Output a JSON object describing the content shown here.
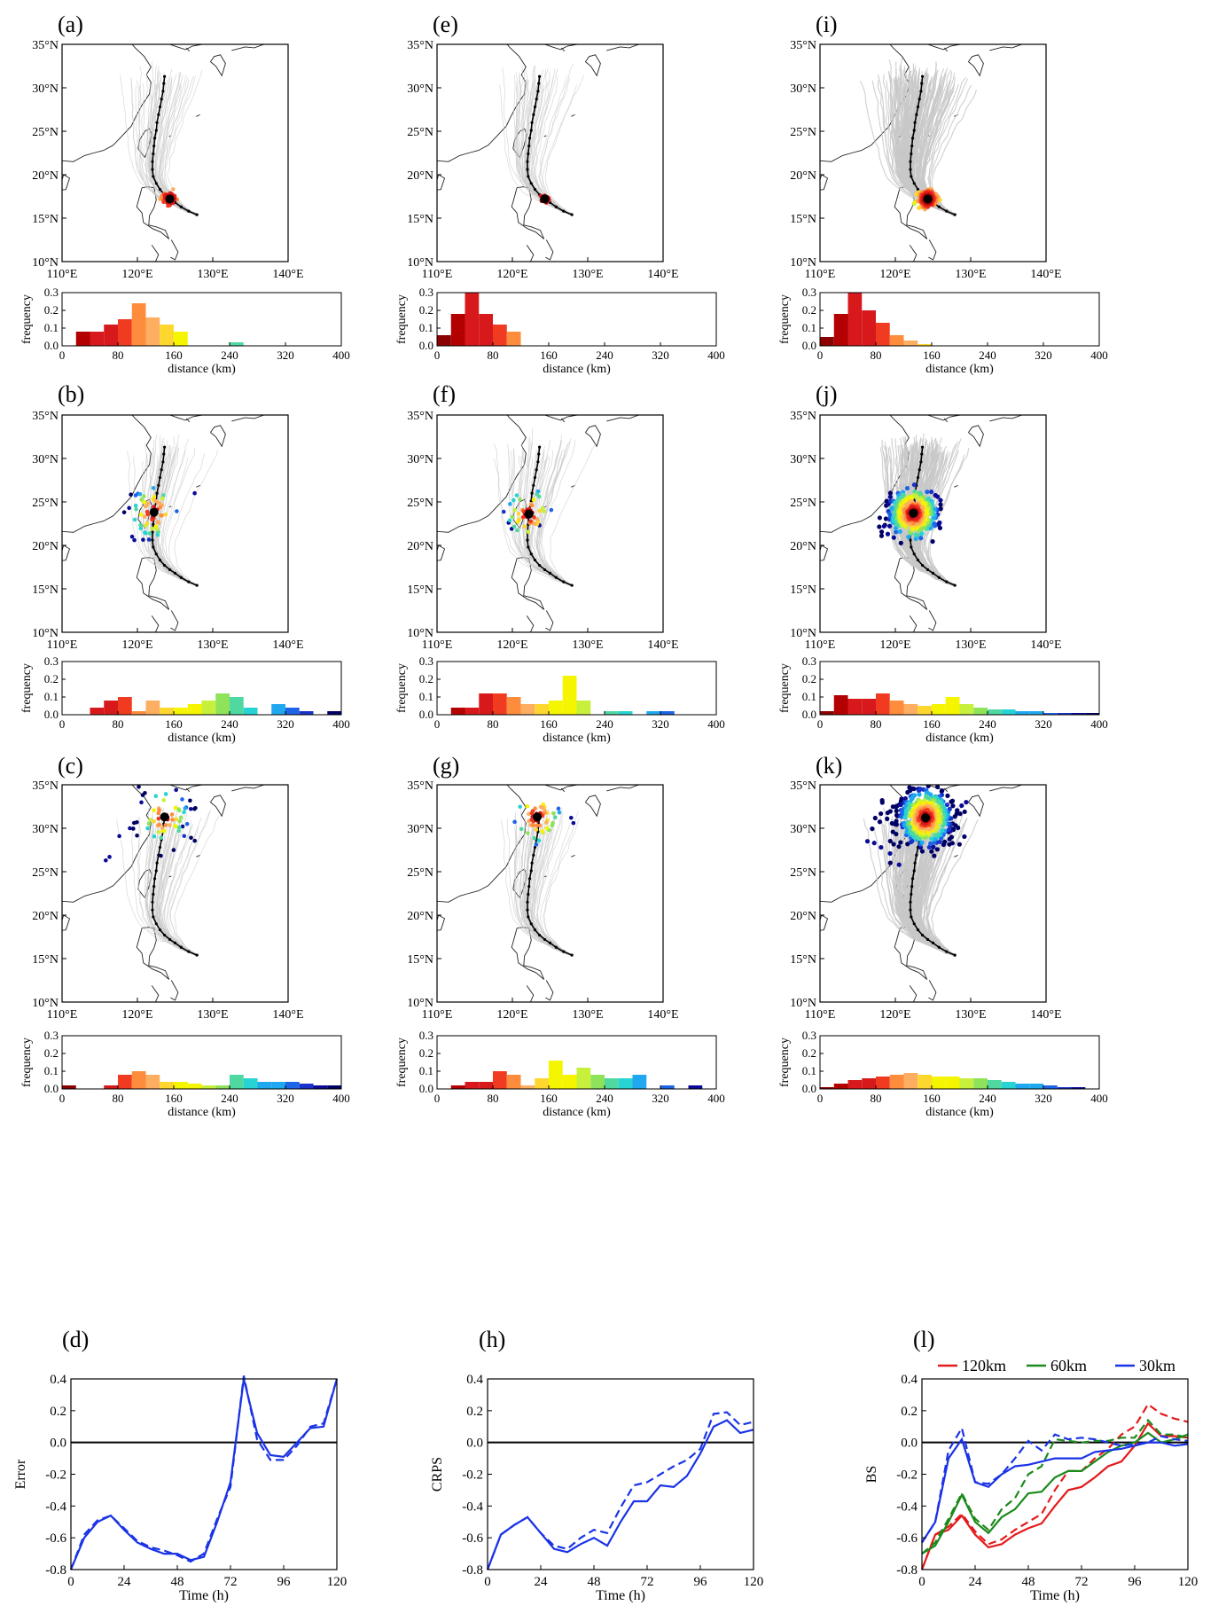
{
  "colors": {
    "distance_scale": [
      "#8b0000",
      "#b30000",
      "#d7191c",
      "#f03b20",
      "#fd8d3c",
      "#fdae61",
      "#fed72e",
      "#f5f500",
      "#c6f03c",
      "#8fe35a",
      "#4fd9a0",
      "#27d3d3",
      "#1fa8f0",
      "#1e64e6",
      "#1932c8",
      "#0a0a96",
      "#000064"
    ],
    "track_gray": "#c8c8c8",
    "best_track": "#000000",
    "line_120km": "#e41a1c",
    "line_60km": "#1b8a1b",
    "line_30km": "#1a33e6"
  },
  "panels": [
    {
      "label": "(a)",
      "col": 0,
      "row": 0,
      "center": [
        124.3,
        17.2
      ],
      "spread": 0.8,
      "npts": 70,
      "nlines": 45,
      "outliers": [],
      "hist": [
        0,
        0.08,
        0.08,
        0.12,
        0.15,
        0.24,
        0.16,
        0.12,
        0.08,
        0,
        0,
        0,
        0.02,
        0,
        0,
        0,
        0,
        0,
        0,
        0
      ]
    },
    {
      "label": "(b)",
      "col": 0,
      "row": 1,
      "center": [
        122.2,
        23.8
      ],
      "spread": 2.8,
      "npts": 60,
      "nlines": 45,
      "outliers": [
        [
          119.3,
          21.0
        ],
        [
          119.6,
          20.6
        ],
        [
          127.6,
          26.0
        ],
        [
          118.9,
          24.3
        ]
      ],
      "hist": [
        0,
        0,
        0.04,
        0.08,
        0.1,
        0.02,
        0.08,
        0.04,
        0.04,
        0.06,
        0.08,
        0.12,
        0.1,
        0.04,
        0,
        0.06,
        0.04,
        0.02,
        0,
        0.02
      ]
    },
    {
      "label": "(c)",
      "col": 0,
      "row": 2,
      "center": [
        123.6,
        31.3
      ],
      "spread": 3.6,
      "npts": 60,
      "nlines": 45,
      "outliers": [
        [
          115.8,
          26.3
        ],
        [
          116.3,
          26.7
        ],
        [
          117.6,
          29.1
        ],
        [
          119.0,
          30.0
        ],
        [
          126.0,
          30.2
        ]
      ],
      "hist": [
        0.02,
        0,
        0,
        0.02,
        0.08,
        0.1,
        0.08,
        0.04,
        0.04,
        0.03,
        0.02,
        0.02,
        0.08,
        0.06,
        0.04,
        0.04,
        0.04,
        0.03,
        0.02,
        0.02
      ]
    },
    {
      "label": "(e)",
      "col": 1,
      "row": 0,
      "center": [
        124.3,
        17.2
      ],
      "spread": 0.5,
      "npts": 40,
      "nlines": 45,
      "outliers": [],
      "hist": [
        0.06,
        0.18,
        0.3,
        0.18,
        0.12,
        0.08,
        0,
        0,
        0,
        0,
        0,
        0,
        0,
        0,
        0,
        0,
        0,
        0,
        0,
        0
      ]
    },
    {
      "label": "(f)",
      "col": 1,
      "row": 1,
      "center": [
        122.2,
        23.6
      ],
      "spread": 2.0,
      "npts": 50,
      "nlines": 45,
      "outliers": [
        [
          119.5,
          22.6
        ],
        [
          119.9,
          21.9
        ],
        [
          123.6,
          22.3
        ]
      ],
      "hist": [
        0,
        0.04,
        0.04,
        0.12,
        0.12,
        0.1,
        0.06,
        0.06,
        0.08,
        0.22,
        0.08,
        0,
        0.02,
        0.02,
        0,
        0.02,
        0.02,
        0,
        0,
        0
      ]
    },
    {
      "label": "(g)",
      "col": 1,
      "row": 2,
      "center": [
        123.3,
        31.3
      ],
      "spread": 2.2,
      "npts": 50,
      "nlines": 45,
      "outliers": [
        [
          127.8,
          31.2
        ],
        [
          128.1,
          30.6
        ]
      ],
      "hist": [
        0,
        0.02,
        0.04,
        0.04,
        0.1,
        0.08,
        0.02,
        0.06,
        0.16,
        0.08,
        0.12,
        0.08,
        0.06,
        0.06,
        0.08,
        0,
        0.02,
        0,
        0.02,
        0
      ]
    },
    {
      "label": "(i)",
      "col": 2,
      "row": 0,
      "center": [
        124.3,
        17.2
      ],
      "spread": 0.9,
      "npts": 300,
      "nlines": 130,
      "outliers": [],
      "hist": [
        0.05,
        0.18,
        0.3,
        0.2,
        0.13,
        0.06,
        0.03,
        0.01,
        0,
        0,
        0,
        0,
        0,
        0,
        0,
        0,
        0,
        0,
        0,
        0
      ]
    },
    {
      "label": "(j)",
      "col": 2,
      "row": 1,
      "center": [
        122.4,
        23.7
      ],
      "spread": 2.7,
      "npts": 420,
      "nlines": 130,
      "outliers": [
        [
          118.5,
          22.2
        ],
        [
          119.0,
          21.3
        ],
        [
          119.8,
          20.9
        ],
        [
          125.6,
          25.6
        ],
        [
          126.0,
          25.2
        ]
      ],
      "hist": [
        0.02,
        0.11,
        0.09,
        0.09,
        0.12,
        0.08,
        0.06,
        0.05,
        0.06,
        0.1,
        0.06,
        0.04,
        0.03,
        0.03,
        0.02,
        0.02,
        0.01,
        0.01,
        0.01,
        0.01
      ]
    },
    {
      "label": "(k)",
      "col": 2,
      "row": 2,
      "center": [
        124.0,
        31.2
      ],
      "spread": 3.4,
      "npts": 500,
      "nlines": 130,
      "outliers": [
        [
          116.3,
          28.5
        ],
        [
          117.2,
          28.3
        ],
        [
          118.1,
          27.8
        ],
        [
          119.3,
          27.1
        ],
        [
          128.8,
          32.6
        ],
        [
          129.4,
          33.0
        ],
        [
          120.5,
          25.8
        ]
      ],
      "hist": [
        0.01,
        0.03,
        0.05,
        0.06,
        0.07,
        0.08,
        0.09,
        0.08,
        0.07,
        0.07,
        0.06,
        0.06,
        0.05,
        0.04,
        0.03,
        0.03,
        0.02,
        0.01,
        0.01,
        0
      ]
    }
  ],
  "map_axes": {
    "x_ticks": [
      "110°E",
      "120°E",
      "130°E",
      "140°E"
    ],
    "y_ticks": [
      "10°N",
      "15°N",
      "20°N",
      "25°N",
      "30°N",
      "35°N"
    ],
    "lon_range": [
      110,
      140
    ],
    "lat_range": [
      10,
      35
    ]
  },
  "hist_axes": {
    "ylabel": "frequency",
    "xlabel": "distance (km)",
    "x_ticks": [
      "0",
      "80",
      "160",
      "240",
      "320",
      "400"
    ],
    "y_ticks": [
      "0.0",
      "0.1",
      "0.2",
      "0.3"
    ],
    "bin_width_km": 20,
    "ylim": [
      0,
      0.3
    ]
  },
  "best_track": [
    [
      127.9,
      15.4
    ],
    [
      126.8,
      15.8
    ],
    [
      125.8,
      16.3
    ],
    [
      125.0,
      16.8
    ],
    [
      124.3,
      17.2
    ],
    [
      123.6,
      17.7
    ],
    [
      123.0,
      18.3
    ],
    [
      122.5,
      19.0
    ],
    [
      122.1,
      19.8
    ],
    [
      122.0,
      20.6
    ],
    [
      122.0,
      21.5
    ],
    [
      122.1,
      22.4
    ],
    [
      122.2,
      23.3
    ],
    [
      122.3,
      24.2
    ],
    [
      122.5,
      25.1
    ],
    [
      122.6,
      26.0
    ],
    [
      122.8,
      26.9
    ],
    [
      123.0,
      27.8
    ],
    [
      123.2,
      28.7
    ],
    [
      123.4,
      29.6
    ],
    [
      123.5,
      30.5
    ],
    [
      123.6,
      31.3
    ]
  ],
  "time_axes": {
    "xlabel": "Time (h)",
    "x_ticks": [
      "0",
      "24",
      "48",
      "72",
      "96",
      "120"
    ],
    "y_ticks": [
      "-0.8",
      "-0.6",
      "-0.4",
      "-0.2",
      "0.0",
      "0.2",
      "0.4"
    ]
  },
  "chart_data": [
    {
      "type": "line",
      "label": "(d)",
      "xlabel": "Time (h)",
      "ylabel": "Error",
      "xlim": [
        0,
        120
      ],
      "ylim": [
        -0.8,
        0.4
      ],
      "x": [
        0,
        6,
        12,
        18,
        24,
        30,
        36,
        42,
        48,
        54,
        60,
        66,
        72,
        78,
        84,
        90,
        96,
        102,
        108,
        114,
        120
      ],
      "series": [
        {
          "color": "#1a33e6",
          "dash": false,
          "values": [
            -0.8,
            -0.6,
            -0.5,
            -0.46,
            -0.55,
            -0.63,
            -0.67,
            -0.7,
            -0.7,
            -0.74,
            -0.72,
            -0.5,
            -0.25,
            0.4,
            0.06,
            -0.08,
            -0.09,
            0.0,
            0.09,
            0.1,
            0.4
          ]
        },
        {
          "color": "#1a33e6",
          "dash": true,
          "values": [
            -0.8,
            -0.58,
            -0.49,
            -0.46,
            -0.54,
            -0.62,
            -0.66,
            -0.68,
            -0.71,
            -0.75,
            -0.7,
            -0.48,
            -0.28,
            0.42,
            0.02,
            -0.11,
            -0.11,
            -0.02,
            0.1,
            0.12,
            0.4
          ]
        }
      ]
    },
    {
      "type": "line",
      "label": "(h)",
      "xlabel": "Time (h)",
      "ylabel": "CRPS",
      "xlim": [
        0,
        120
      ],
      "ylim": [
        -0.8,
        0.4
      ],
      "x": [
        0,
        6,
        12,
        18,
        24,
        30,
        36,
        42,
        48,
        54,
        60,
        66,
        72,
        78,
        84,
        90,
        96,
        102,
        108,
        114,
        120
      ],
      "series": [
        {
          "color": "#1a33e6",
          "dash": false,
          "values": [
            -0.8,
            -0.58,
            -0.52,
            -0.47,
            -0.57,
            -0.67,
            -0.69,
            -0.64,
            -0.6,
            -0.65,
            -0.5,
            -0.37,
            -0.37,
            -0.27,
            -0.28,
            -0.21,
            -0.07,
            0.1,
            0.14,
            0.06,
            0.08
          ]
        },
        {
          "color": "#1a33e6",
          "dash": true,
          "values": [
            -0.8,
            -0.58,
            -0.52,
            -0.47,
            -0.57,
            -0.65,
            -0.67,
            -0.6,
            -0.55,
            -0.57,
            -0.41,
            -0.27,
            -0.25,
            -0.2,
            -0.15,
            -0.11,
            -0.04,
            0.18,
            0.19,
            0.11,
            0.13
          ]
        }
      ]
    },
    {
      "type": "line",
      "label": "(l)",
      "xlabel": "Time (h)",
      "ylabel": "BS",
      "xlim": [
        0,
        120
      ],
      "ylim": [
        -0.8,
        0.4
      ],
      "legend": [
        "120km",
        "60km",
        "30km"
      ],
      "x": [
        0,
        6,
        12,
        18,
        24,
        30,
        36,
        42,
        48,
        54,
        60,
        66,
        72,
        78,
        84,
        90,
        96,
        102,
        108,
        114,
        120
      ],
      "series": [
        {
          "name": "120km",
          "color": "#e41a1c",
          "dash": false,
          "values": [
            -0.8,
            -0.58,
            -0.55,
            -0.46,
            -0.58,
            -0.66,
            -0.64,
            -0.58,
            -0.54,
            -0.51,
            -0.4,
            -0.3,
            -0.28,
            -0.22,
            -0.15,
            -0.12,
            -0.02,
            0.12,
            0.04,
            0.04,
            0.03
          ]
        },
        {
          "name": "120km",
          "color": "#e41a1c",
          "dash": true,
          "values": [
            -0.8,
            -0.58,
            -0.53,
            -0.45,
            -0.56,
            -0.64,
            -0.61,
            -0.55,
            -0.5,
            -0.45,
            -0.3,
            -0.18,
            -0.18,
            -0.1,
            -0.04,
            0.05,
            0.1,
            0.24,
            0.18,
            0.15,
            0.13
          ]
        },
        {
          "name": "60km",
          "color": "#1b8a1b",
          "dash": false,
          "values": [
            -0.7,
            -0.65,
            -0.5,
            -0.33,
            -0.5,
            -0.57,
            -0.47,
            -0.42,
            -0.32,
            -0.31,
            -0.22,
            -0.18,
            -0.18,
            -0.12,
            -0.06,
            -0.02,
            0.0,
            0.06,
            0.0,
            0.02,
            0.05
          ]
        },
        {
          "name": "60km",
          "color": "#1b8a1b",
          "dash": true,
          "values": [
            -0.7,
            -0.63,
            -0.48,
            -0.32,
            -0.48,
            -0.55,
            -0.42,
            -0.35,
            -0.2,
            -0.15,
            0.02,
            0.01,
            0.0,
            0.01,
            0.01,
            0.03,
            0.03,
            0.14,
            0.05,
            0.05,
            0.03
          ]
        },
        {
          "name": "30km",
          "color": "#1a33e6",
          "dash": false,
          "values": [
            -0.63,
            -0.5,
            -0.1,
            0.02,
            -0.25,
            -0.28,
            -0.2,
            -0.15,
            -0.14,
            -0.12,
            -0.1,
            -0.1,
            -0.1,
            -0.06,
            -0.05,
            -0.04,
            -0.02,
            0.0,
            0.0,
            -0.02,
            -0.01
          ]
        },
        {
          "name": "30km",
          "color": "#1a33e6",
          "dash": true,
          "values": [
            -0.63,
            -0.5,
            -0.05,
            0.09,
            -0.25,
            -0.26,
            -0.2,
            -0.1,
            0.01,
            -0.05,
            0.05,
            0.02,
            0.03,
            0.02,
            0.0,
            -0.02,
            -0.01,
            0.0,
            0.04,
            0.02,
            0.01
          ]
        }
      ]
    }
  ]
}
